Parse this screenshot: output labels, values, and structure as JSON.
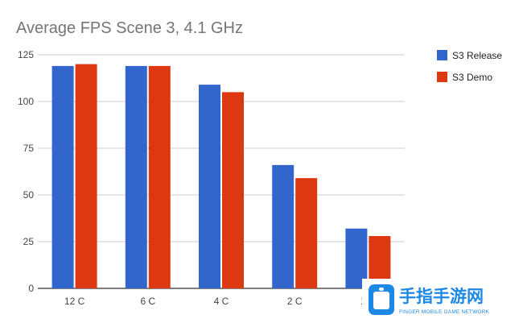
{
  "chart_data": {
    "type": "bar",
    "title": "Average FPS Scene 3, 4.1 GHz",
    "categories": [
      "12 C",
      "6 C",
      "4 C",
      "2 C",
      "1 C"
    ],
    "series": [
      {
        "name": "S3 Release",
        "color": "#3366cc",
        "values": [
          119,
          119,
          109,
          66,
          32
        ]
      },
      {
        "name": "S3 Demo",
        "color": "#dc3912",
        "values": [
          120,
          119,
          105,
          59,
          28
        ]
      }
    ],
    "ylim": [
      0,
      125
    ],
    "yticks": [
      0,
      25,
      50,
      75,
      100,
      125
    ],
    "grid": true,
    "legend": "top-right"
  },
  "watermark": {
    "text": "手指手游网",
    "subtext": "FINGER MOBILE GAME NETWORK",
    "icon": "hand-icon",
    "color": "#1e88e5"
  }
}
